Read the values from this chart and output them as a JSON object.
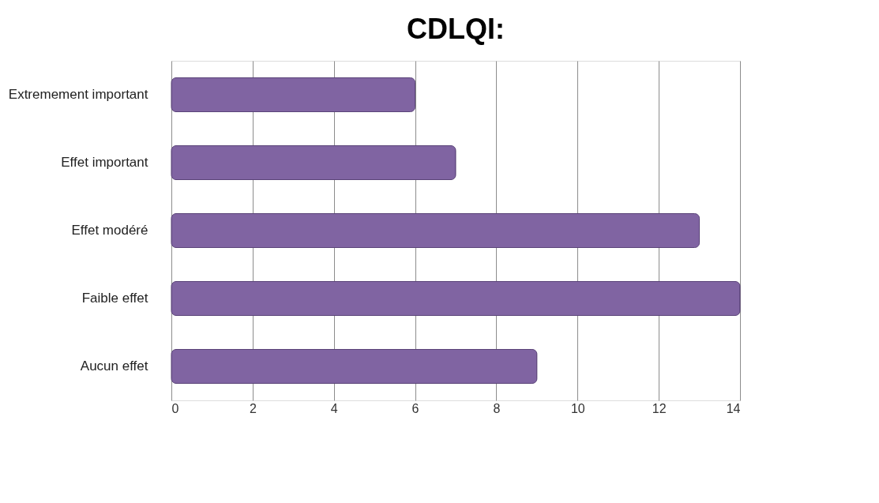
{
  "chart_data": {
    "type": "bar",
    "orientation": "horizontal",
    "title": "CDLQI:",
    "categories": [
      "Extremement important",
      "Effet important",
      "Effet modéré",
      "Faible effet",
      "Aucun effet"
    ],
    "values": [
      6,
      7,
      13,
      14,
      9
    ],
    "color": "#8064a2",
    "xlim": [
      0,
      14
    ],
    "xticks": [
      0,
      2,
      4,
      6,
      8,
      10,
      12,
      14
    ],
    "grid": "x"
  }
}
